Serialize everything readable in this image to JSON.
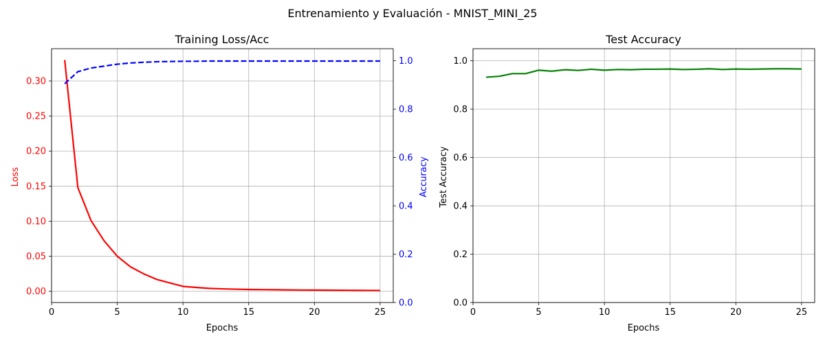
{
  "figure": {
    "suptitle": "Entrenamiento y Evaluación - MNIST_MINI_25"
  },
  "chart_data": [
    {
      "type": "line",
      "title": "Training Loss/Acc",
      "xlabel": "Epochs",
      "ylabel": "Loss",
      "y2label": "Accuracy",
      "xlim": [
        0,
        26
      ],
      "ylim": [
        -0.016,
        0.346
      ],
      "y2lim": [
        0,
        1.05
      ],
      "xticks": [
        0,
        5,
        10,
        15,
        20,
        25
      ],
      "yticks": [
        0.0,
        0.05,
        0.1,
        0.15,
        0.2,
        0.25,
        0.3
      ],
      "y2ticks": [
        0.0,
        0.2,
        0.4,
        0.6,
        0.8,
        1.0
      ],
      "grid": true,
      "x": [
        1,
        2,
        3,
        4,
        5,
        6,
        7,
        8,
        9,
        10,
        11,
        12,
        13,
        14,
        15,
        16,
        17,
        18,
        19,
        20,
        21,
        22,
        23,
        24,
        25
      ],
      "series": [
        {
          "axis": "left",
          "color": "#ff0000",
          "style": "solid",
          "values": [
            0.33,
            0.148,
            0.101,
            0.072,
            0.05,
            0.035,
            0.025,
            0.017,
            0.012,
            0.007,
            0.0055,
            0.0042,
            0.0035,
            0.003,
            0.0026,
            0.0024,
            0.0022,
            0.002,
            0.0018,
            0.0017,
            0.0016,
            0.0015,
            0.0014,
            0.0013,
            0.0012
          ]
        },
        {
          "axis": "right",
          "color": "#0000ff",
          "style": "dashed",
          "values": [
            0.905,
            0.955,
            0.97,
            0.978,
            0.986,
            0.991,
            0.994,
            0.996,
            0.997,
            0.998,
            0.998,
            0.999,
            0.999,
            0.999,
            0.999,
            0.999,
            0.999,
            0.999,
            0.999,
            0.999,
            0.999,
            0.999,
            0.999,
            0.999,
            0.999
          ]
        }
      ]
    },
    {
      "type": "line",
      "title": "Test Accuracy",
      "xlabel": "Epochs",
      "ylabel": "Test Accuracy",
      "xlim": [
        0,
        26
      ],
      "ylim": [
        0,
        1.05
      ],
      "xticks": [
        0,
        5,
        10,
        15,
        20,
        25
      ],
      "yticks": [
        0.0,
        0.2,
        0.4,
        0.6,
        0.8,
        1.0
      ],
      "grid": true,
      "x": [
        1,
        2,
        3,
        4,
        5,
        6,
        7,
        8,
        9,
        10,
        11,
        12,
        13,
        14,
        15,
        16,
        17,
        18,
        19,
        20,
        21,
        22,
        23,
        24,
        25
      ],
      "series": [
        {
          "axis": "left",
          "color": "#008000",
          "style": "solid",
          "values": [
            0.932,
            0.936,
            0.947,
            0.947,
            0.961,
            0.957,
            0.963,
            0.96,
            0.965,
            0.961,
            0.964,
            0.963,
            0.965,
            0.965,
            0.966,
            0.964,
            0.965,
            0.967,
            0.964,
            0.966,
            0.965,
            0.966,
            0.967,
            0.967,
            0.966
          ]
        }
      ]
    }
  ]
}
